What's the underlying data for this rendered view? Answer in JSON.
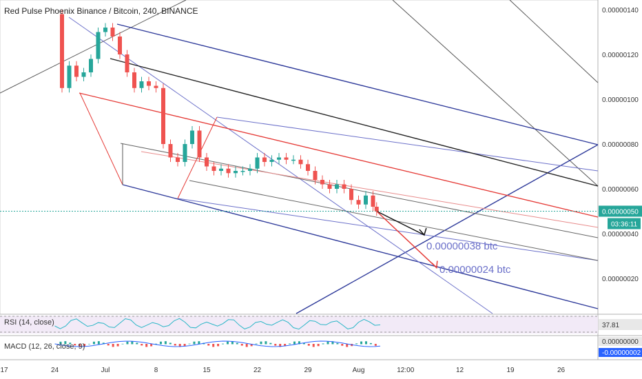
{
  "header": {
    "title": "Red Pulse Phoenix Binance / Bitcoin, 240, BINANCE"
  },
  "rsi": {
    "label": "RSI (14, close)",
    "value": "37.81"
  },
  "macd": {
    "label": "MACD (12, 26, close, 9)",
    "value_1": "0.00000000",
    "value_2": "-0.00000002"
  },
  "price_badge": {
    "value": "0.00000050",
    "countdown": "03:36:11"
  },
  "colors": {
    "candle_up": "#26a69a",
    "candle_down": "#ef5350",
    "channel_blue": "#2e3a9a",
    "pitchfork_red": "#e53935",
    "trend_black": "#222222",
    "rsi_line": "#29b6c6",
    "badge": "#26a69a",
    "grid_bg": "#ffffff"
  },
  "chart_data": {
    "type": "candlestick",
    "title": "Red Pulse Phoenix Binance / Bitcoin, 240, BINANCE",
    "y_ticks": [
      "0.00000140",
      "0.00000120",
      "0.00000100",
      "0.00000080",
      "0.00000060",
      "0.00000040",
      "0.00000020"
    ],
    "y_tick_values": [
      1.4,
      1.2,
      1.0,
      0.8,
      0.6,
      0.4,
      0.2
    ],
    "ylim": [
      0.03,
      1.45
    ],
    "x_ticks": [
      "17",
      "24",
      "Jul",
      "8",
      "15",
      "22",
      "29",
      "Aug",
      "12:00",
      "12",
      "19",
      "26"
    ],
    "x_tick_values": [
      0,
      7,
      14,
      21,
      28,
      35,
      42,
      49,
      55.5,
      63,
      70,
      77
    ],
    "current_price": 0.5,
    "annotations": [
      {
        "text": "0.00000038 btc",
        "x": 57.7,
        "y": 0.4
      },
      {
        "text": "0.00000024 btc",
        "x": 59.6,
        "y": 0.26
      }
    ],
    "series": [
      {
        "name": "price",
        "points": [
          [
            7.0,
            1.38
          ],
          [
            8.0,
            1.05
          ],
          [
            9.0,
            1.15
          ],
          [
            10.0,
            1.1
          ],
          [
            11.0,
            1.12
          ],
          [
            12.0,
            1.18
          ],
          [
            13.0,
            1.3
          ],
          [
            14.0,
            1.32
          ],
          [
            15.0,
            1.28
          ],
          [
            16.0,
            1.2
          ],
          [
            17.0,
            1.12
          ],
          [
            18.0,
            1.05
          ],
          [
            19.0,
            1.08
          ],
          [
            20.0,
            1.06
          ],
          [
            21.0,
            1.05
          ],
          [
            22.0,
            0.8
          ],
          [
            23.0,
            0.74
          ],
          [
            24.0,
            0.72
          ],
          [
            25.0,
            0.8
          ],
          [
            26.0,
            0.86
          ],
          [
            27.0,
            0.74
          ],
          [
            28.0,
            0.7
          ],
          [
            29.0,
            0.68
          ],
          [
            30.0,
            0.69
          ],
          [
            31.0,
            0.67
          ],
          [
            32.0,
            0.68
          ],
          [
            33.0,
            0.68
          ],
          [
            34.0,
            0.69
          ],
          [
            35.0,
            0.74
          ],
          [
            36.0,
            0.72
          ],
          [
            37.0,
            0.73
          ],
          [
            38.0,
            0.74
          ],
          [
            39.0,
            0.73
          ],
          [
            40.0,
            0.73
          ],
          [
            41.0,
            0.71
          ],
          [
            42.0,
            0.68
          ],
          [
            43.0,
            0.64
          ],
          [
            44.0,
            0.62
          ],
          [
            45.0,
            0.6
          ],
          [
            46.0,
            0.62
          ],
          [
            47.0,
            0.6
          ],
          [
            48.0,
            0.55
          ],
          [
            49.0,
            0.53
          ],
          [
            50.0,
            0.57
          ],
          [
            51.0,
            0.52
          ],
          [
            51.5,
            0.5
          ]
        ]
      }
    ],
    "rsi_value": 37.81,
    "macd_values": [
      0.0,
      -2e-08
    ]
  }
}
